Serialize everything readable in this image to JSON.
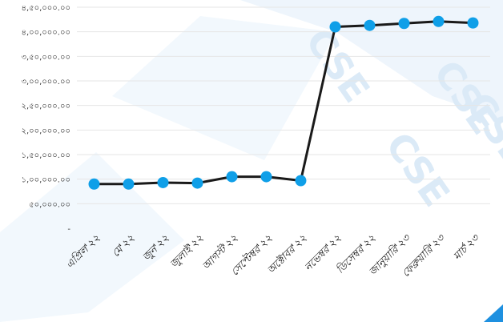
{
  "watermark": "CSE",
  "colors": {
    "line": "#1a1a1a",
    "marker": "#0f9fe8",
    "grid": "#e6e6e6",
    "corner": "#1e90e0"
  },
  "chart_data": {
    "type": "line",
    "categories": [
      "এপ্রিল'২২",
      "মে'২২",
      "জুন'২২",
      "জুলাই'২২",
      "আগস্ট'২২",
      "সেপ্টেম্বর'২২",
      "অক্টোবর'২২",
      "নভেম্বর'২২",
      "ডিসেম্বর'২২",
      "জানুয়ারি'২৩",
      "ফেব্রুয়ারি'২৩",
      "মার্চ'২৩"
    ],
    "values": [
      90000,
      90000,
      93000,
      92000,
      105000,
      105000,
      97000,
      410000,
      413000,
      417000,
      421000,
      418000
    ],
    "ylim": [
      0,
      450000
    ],
    "yticks": [
      0,
      50000,
      100000,
      150000,
      200000,
      250000,
      300000,
      350000,
      400000,
      450000
    ],
    "ytick_labels": [
      "-",
      "৫০,০০০.০০",
      "১,০০,০০০.০০",
      "১,৫০,০০০.০০",
      "২,০০,০০০.০০",
      "২,৫০,০০০.০০",
      "৩,০০,০০০.০০",
      "৩,৫০,০০০.০০",
      "৪,০০,০০০.০০",
      "৪,৫০,০০০.০০"
    ],
    "grid": true,
    "xlabel": "",
    "ylabel": ""
  }
}
